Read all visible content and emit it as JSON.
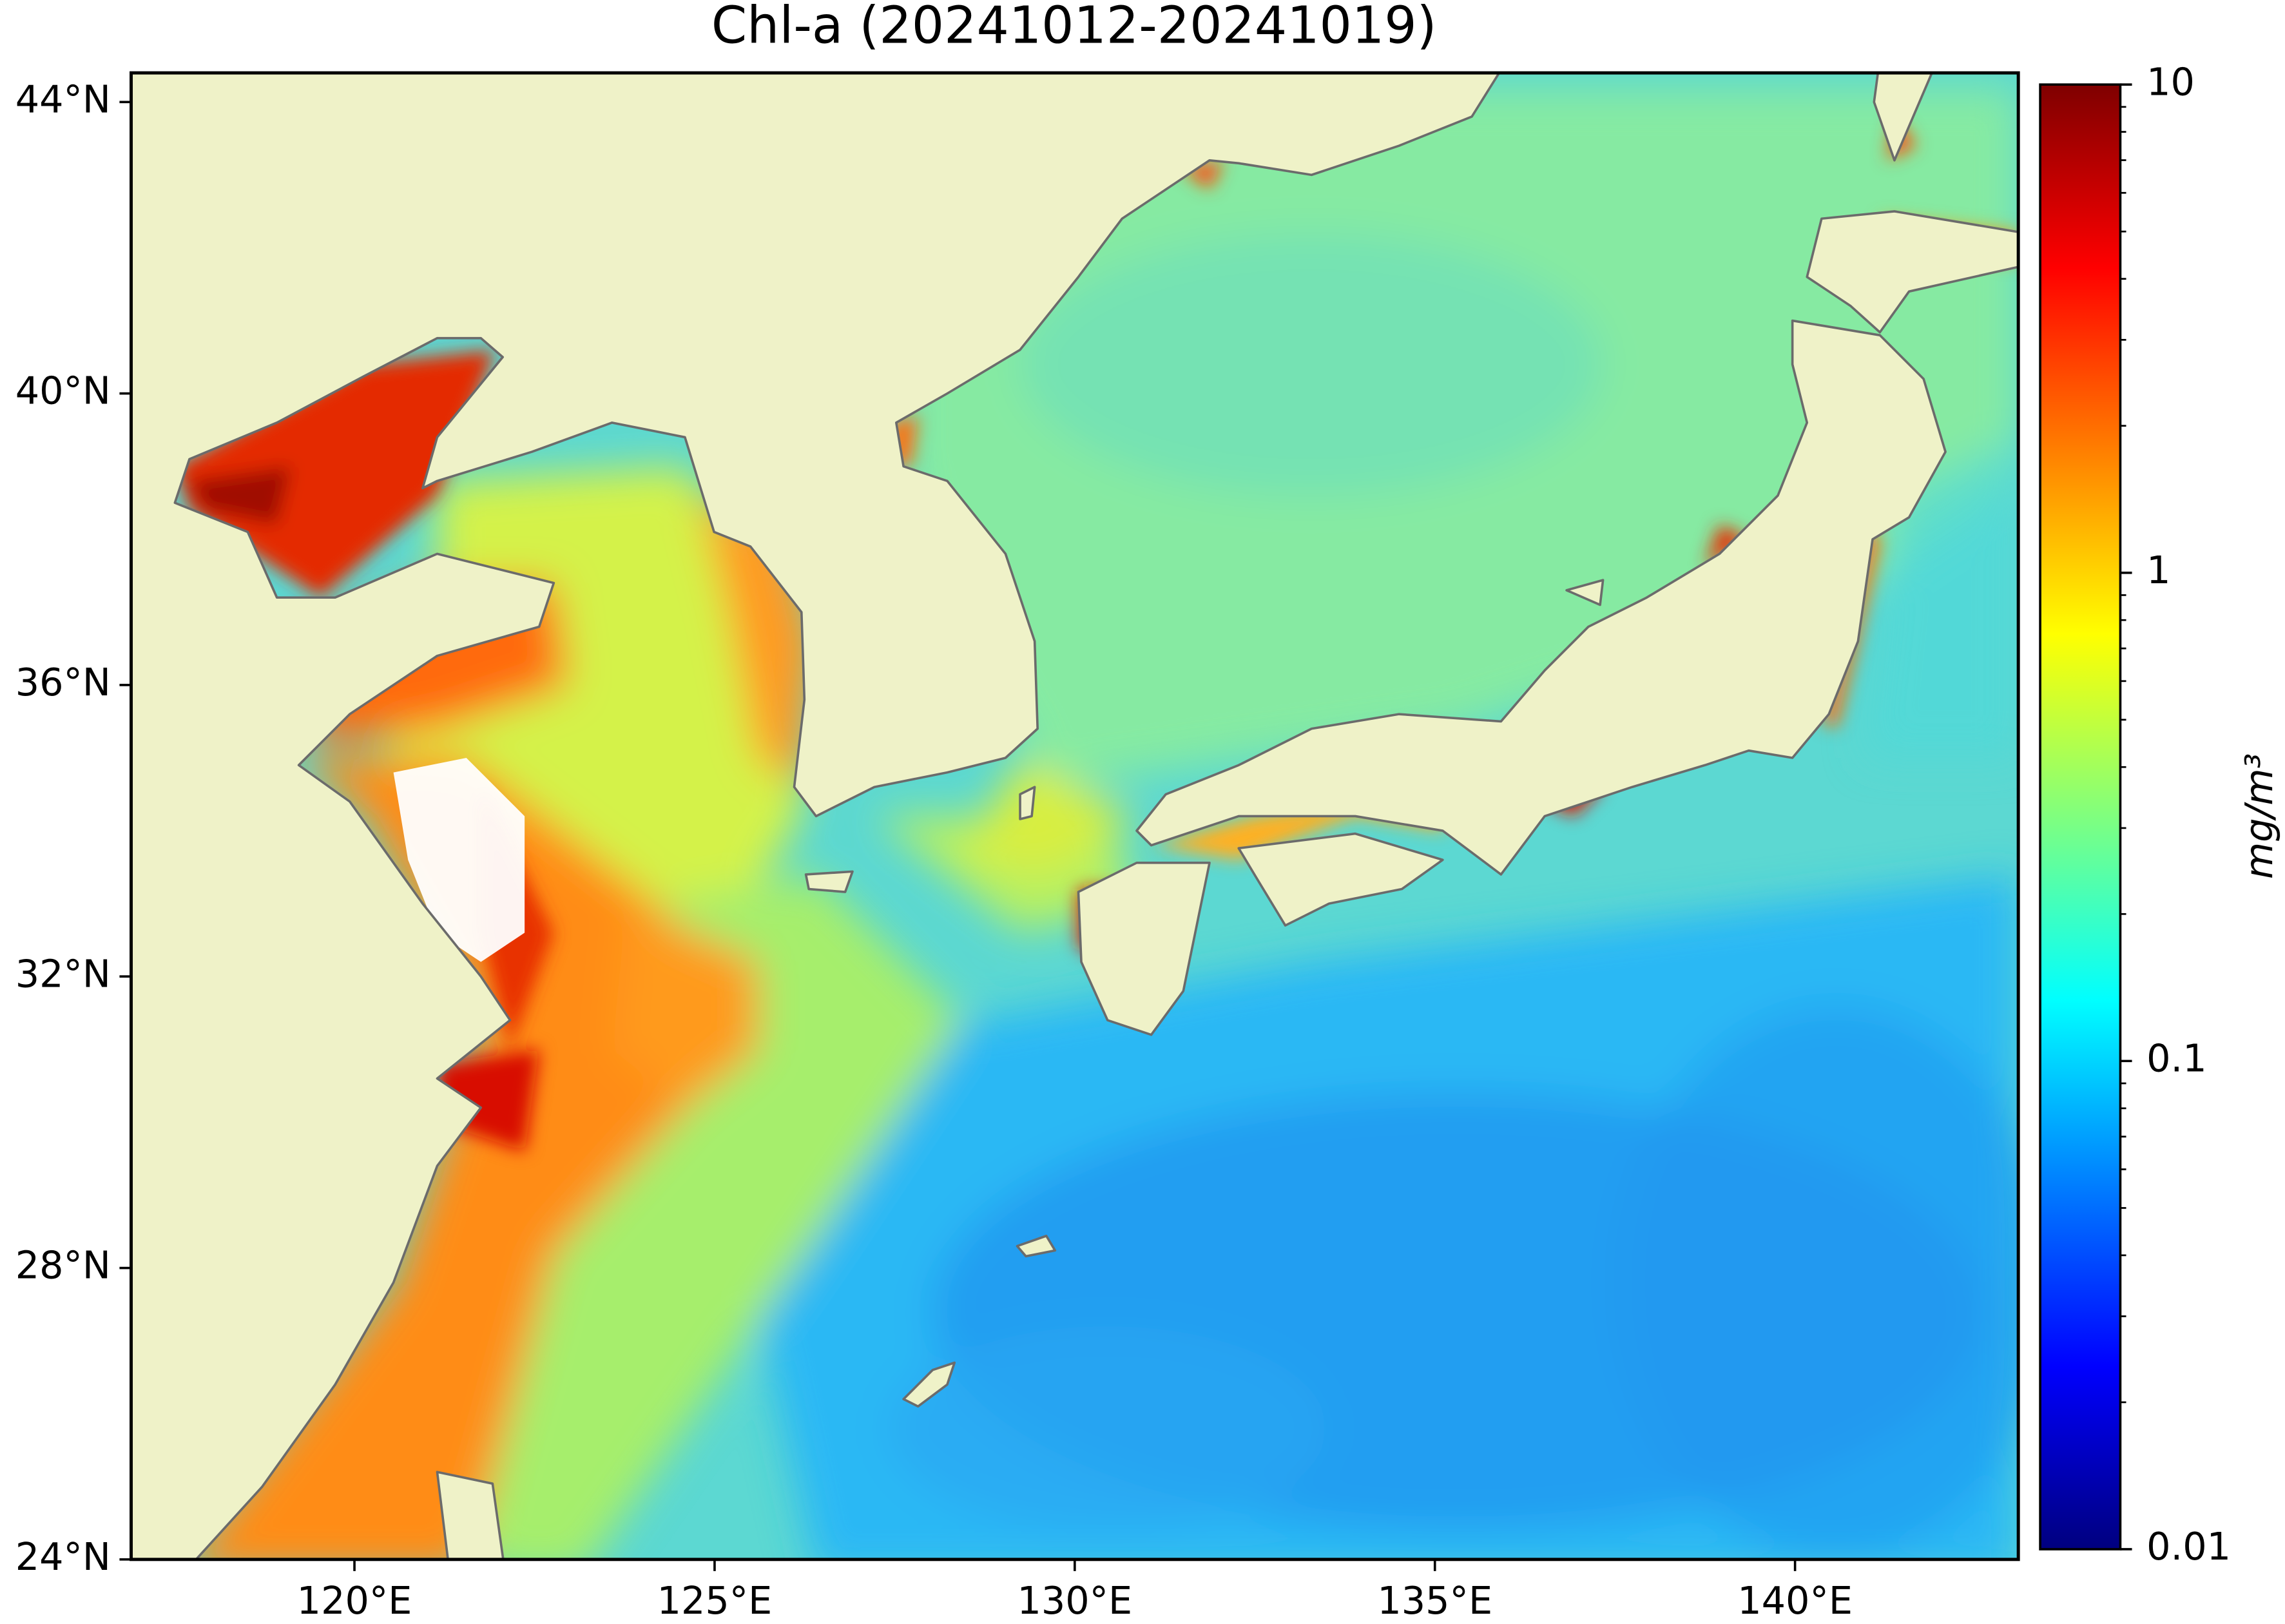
{
  "chart_data": {
    "type": "map",
    "title": "Chl-a (20241012-20241019)",
    "xlim": [
      116.9,
      143.1
    ],
    "ylim": [
      24,
      44.4
    ],
    "xticks": [
      {
        "value": 120,
        "label": "120°E"
      },
      {
        "value": 125,
        "label": "125°E"
      },
      {
        "value": 130,
        "label": "130°E"
      },
      {
        "value": 135,
        "label": "135°E"
      },
      {
        "value": 140,
        "label": "140°E"
      }
    ],
    "yticks": [
      {
        "value": 24,
        "label": "24°N"
      },
      {
        "value": 28,
        "label": "28°N"
      },
      {
        "value": 32,
        "label": "32°N"
      },
      {
        "value": 36,
        "label": "36°N"
      },
      {
        "value": 40,
        "label": "40°N"
      },
      {
        "value": 44,
        "label": "44°N"
      }
    ],
    "land_color": "#eff2c8",
    "colorbar": {
      "label": "mg/m³",
      "scale": "log",
      "lim": [
        0.01,
        10
      ],
      "ticks": [
        0.01,
        0.1,
        1,
        10
      ],
      "minor_ticks": [
        0.02,
        0.03,
        0.04,
        0.05,
        0.06,
        0.07,
        0.08,
        0.09,
        0.2,
        0.3,
        0.4,
        0.5,
        0.6,
        0.7,
        0.8,
        0.9,
        2,
        3,
        4,
        5,
        6,
        7,
        8,
        9
      ],
      "colormap": [
        "#00007f",
        "#0000ff",
        "#007fff",
        "#00ffff",
        "#7fff7f",
        "#ffff00",
        "#ff7f00",
        "#ff0000",
        "#7f0000"
      ]
    }
  }
}
